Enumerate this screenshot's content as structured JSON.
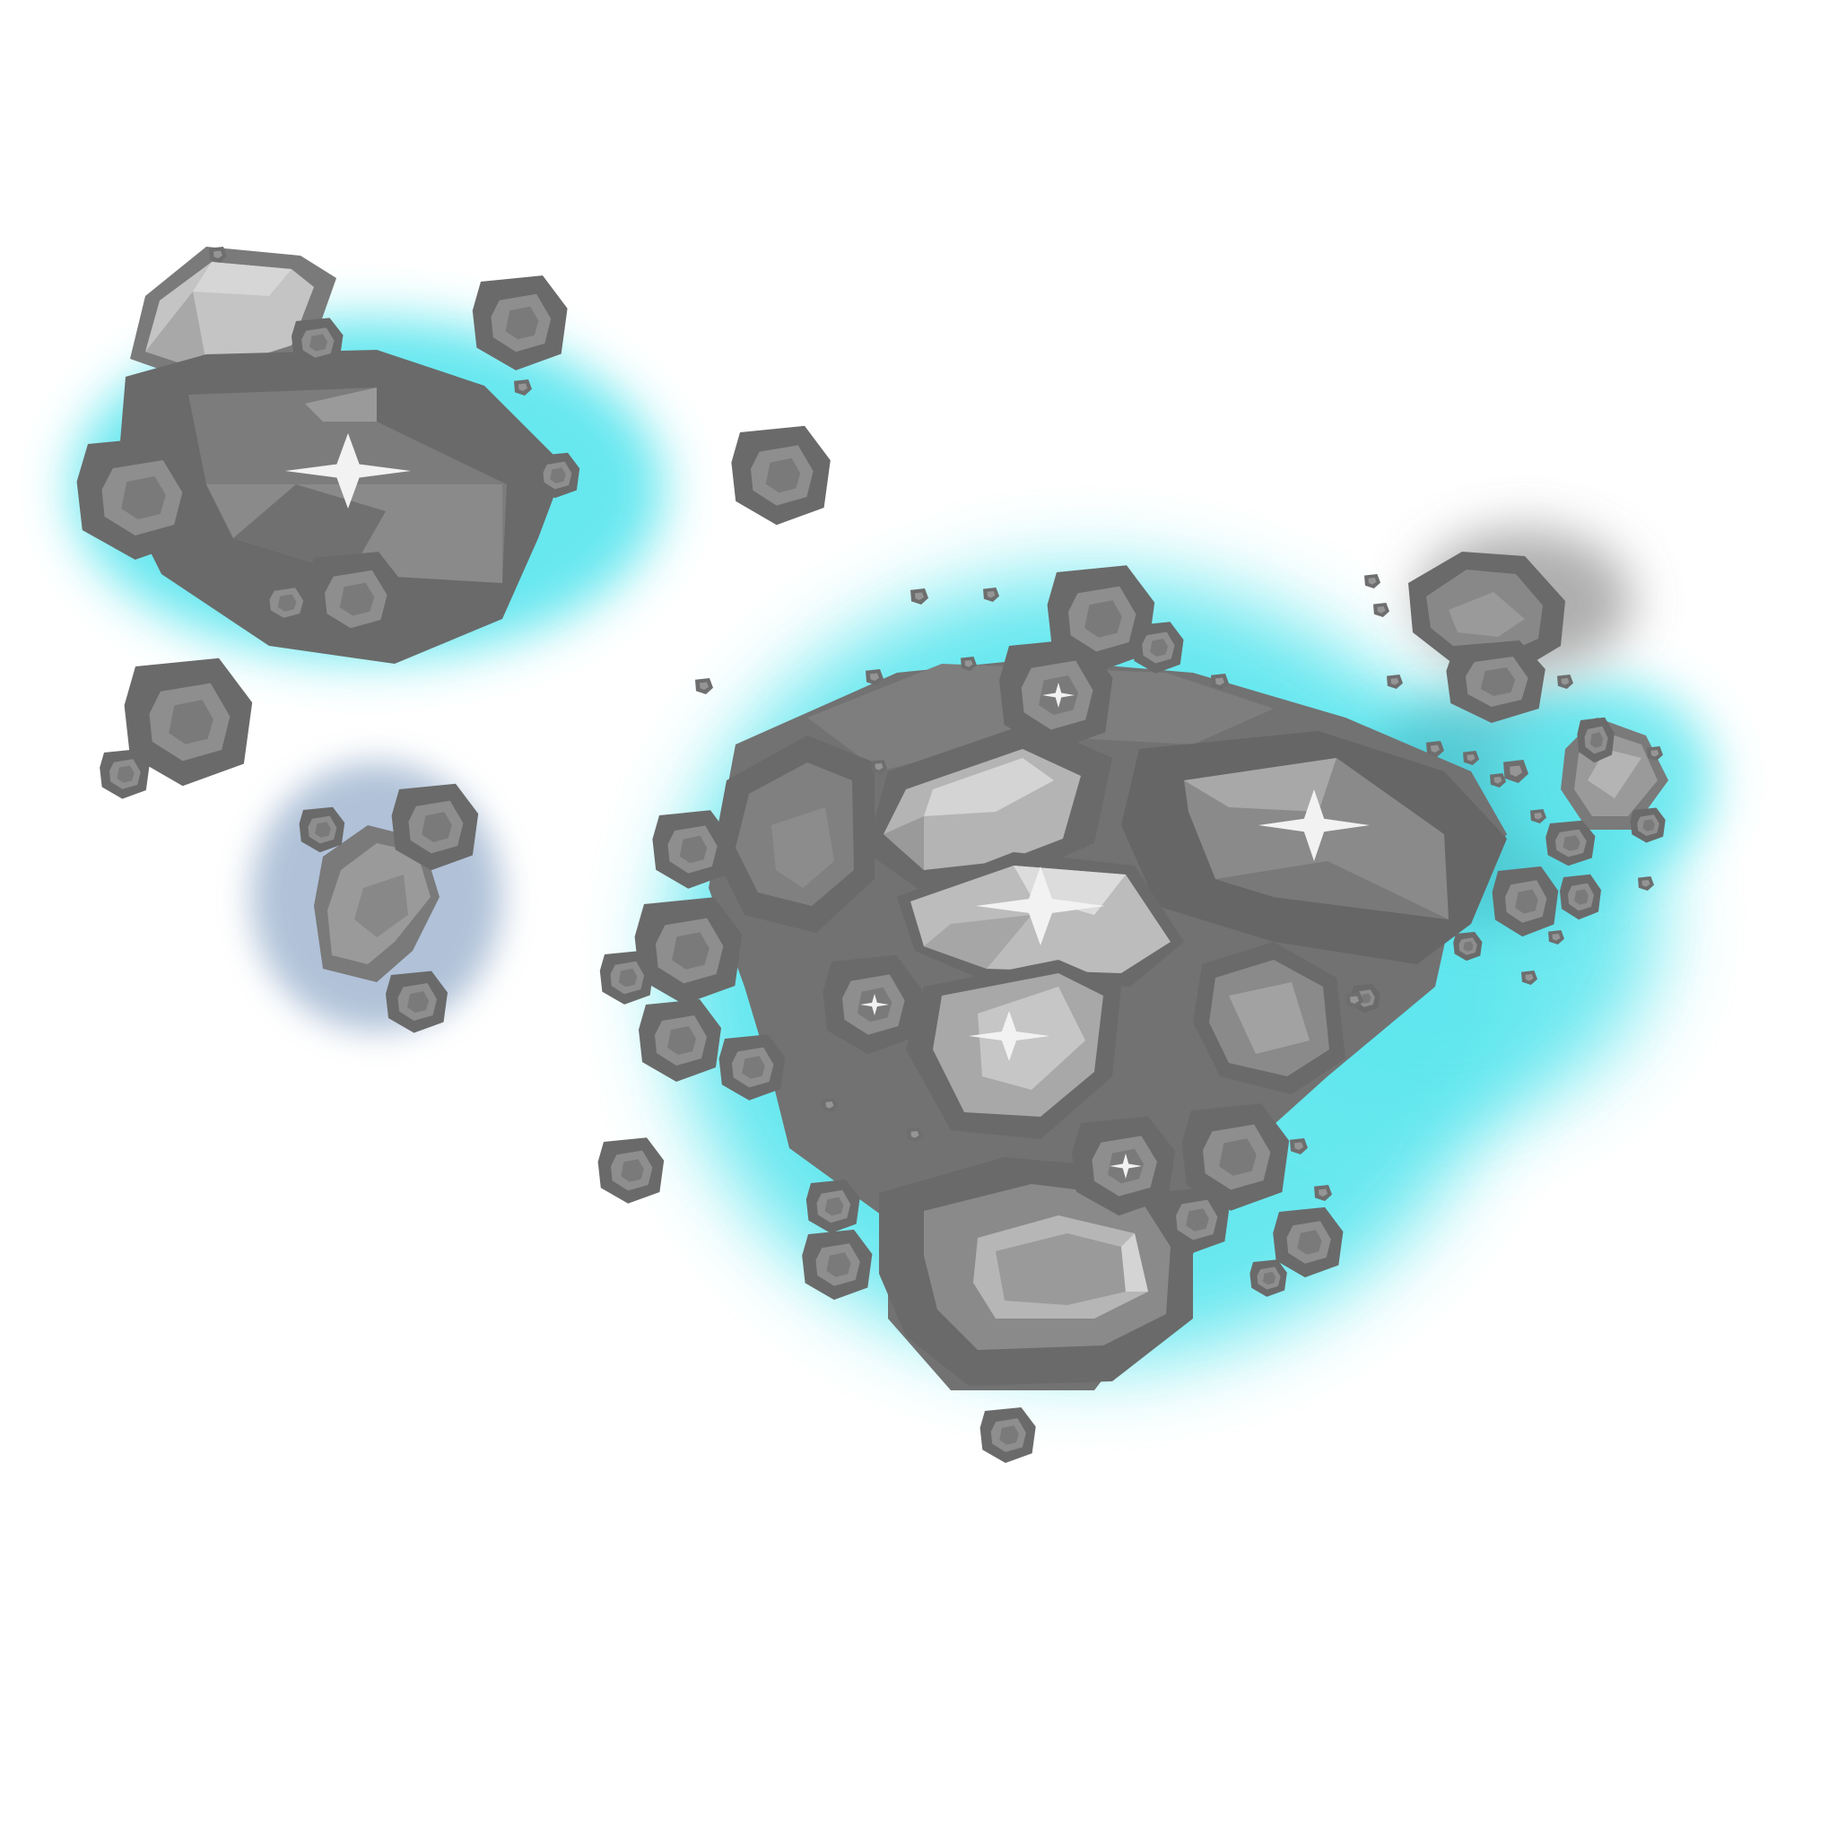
{
  "sprite": {
    "kind": "asteroid-cluster",
    "glow_color": "#5fe6ee",
    "glow_edge_color": "#bff6fa",
    "halo_gray": "#9a9a9a",
    "rock_dark": "#6a6a6a",
    "rock_mid": "#7c7c7c",
    "rock_light": "#9a9a9a",
    "rock_pale": "#c4c4c4",
    "sparkle_color": "#f2f2f2",
    "icons": [
      "large-asteroid",
      "small-asteroid",
      "pebble",
      "sparkle-star",
      "cyan-glow"
    ]
  }
}
